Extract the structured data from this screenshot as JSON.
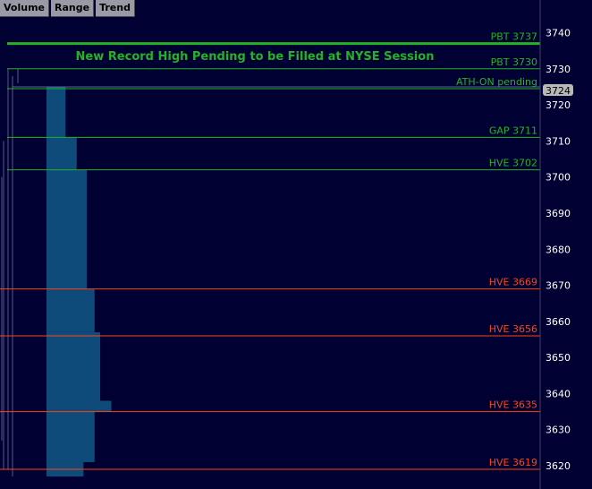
{
  "tabs": [
    "Volume",
    "Range",
    "Trend"
  ],
  "current_price_label": "3724",
  "chart_data": {
    "type": "bar",
    "title": "New Record High Pending to be Filled at NYSE Session",
    "y_axis": {
      "ticks": [
        3620,
        3630,
        3640,
        3650,
        3660,
        3670,
        3680,
        3690,
        3700,
        3710,
        3720,
        3730,
        3740
      ],
      "range": [
        3617,
        3743
      ],
      "position": "right"
    },
    "volume_profile": [
      {
        "price_low": 3711,
        "price_high": 3725,
        "relative_volume": 0.17
      },
      {
        "price_low": 3702,
        "price_high": 3711,
        "relative_volume": 0.27
      },
      {
        "price_low": 3669,
        "price_high": 3702,
        "relative_volume": 0.36
      },
      {
        "price_low": 3657,
        "price_high": 3669,
        "relative_volume": 0.43
      },
      {
        "price_low": 3638,
        "price_high": 3657,
        "relative_volume": 0.48
      },
      {
        "price_low": 3635,
        "price_high": 3638,
        "relative_volume": 0.58
      },
      {
        "price_low": 3621,
        "price_high": 3635,
        "relative_volume": 0.43
      },
      {
        "price_low": 3617,
        "price_high": 3621,
        "relative_volume": 0.33
      }
    ],
    "levels": [
      {
        "label": "PBT 3737",
        "price": 3737,
        "color": "#22b422",
        "emphasis": "bold"
      },
      {
        "label": "PBT 3730",
        "price": 3730,
        "color": "#22b422",
        "emphasis": "normal"
      },
      {
        "label": "ATH-ON pending",
        "price": 3724.5,
        "color": "#22b422",
        "emphasis": "normal"
      },
      {
        "label": "GAP 3711",
        "price": 3711,
        "color": "#22b422",
        "emphasis": "normal"
      },
      {
        "label": "HVE 3702",
        "price": 3702,
        "color": "#22b422",
        "emphasis": "normal"
      },
      {
        "label": "HVE 3669",
        "price": 3669,
        "color": "#ff4411",
        "emphasis": "normal"
      },
      {
        "label": "HVE 3656",
        "price": 3656,
        "color": "#ff4411",
        "emphasis": "normal"
      },
      {
        "label": "HVE 3635",
        "price": 3635,
        "color": "#ff4411",
        "emphasis": "normal"
      },
      {
        "label": "HVE 3619",
        "price": 3619,
        "color": "#ff4411",
        "emphasis": "normal"
      }
    ],
    "current_price": 3724
  },
  "colors": {
    "background": "#000033",
    "profile": "#0e4a7a",
    "support": "#ff4411",
    "resistance": "#22b422",
    "axis_text": "#ffffff"
  }
}
